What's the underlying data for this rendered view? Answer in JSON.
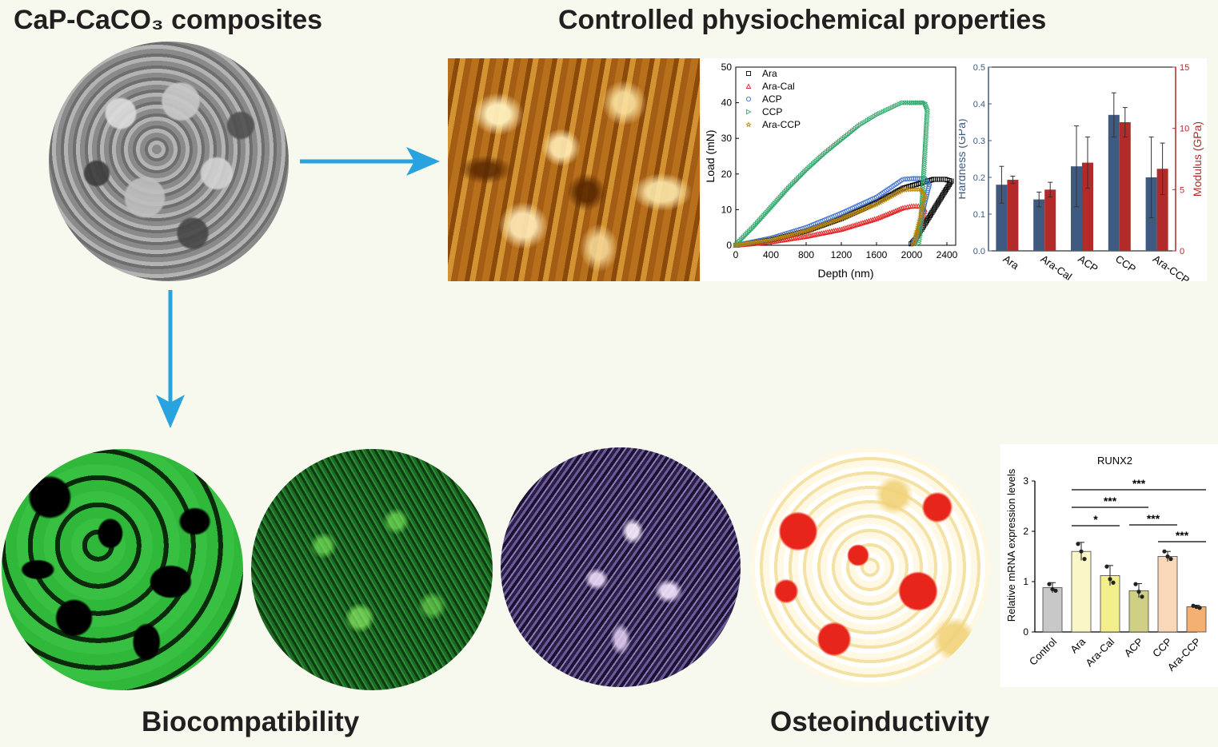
{
  "titles": {
    "composites": "CaP-CaCO₃ composites",
    "properties": "Controlled physiochemical properties",
    "biocompatibility": "Biocompatibility",
    "osteoinductivity": "Osteoinductivity"
  },
  "colors": {
    "background": "#f7f9ee",
    "arrow": "#29a3e0",
    "hardness": "#3e5a80",
    "modulus": "#b22a2a"
  },
  "chart_data": [
    {
      "type": "line",
      "xlabel": "Depth (nm)",
      "ylabel": "Load (mN)",
      "xlim": [
        0,
        2500
      ],
      "ylim": [
        0,
        50
      ],
      "xticks": [
        "0",
        "400",
        "800",
        "1200",
        "1600",
        "2000",
        "2400"
      ],
      "yticks": [
        "0",
        "10",
        "20",
        "30",
        "40",
        "50"
      ],
      "legend_position": "top-left",
      "series": [
        {
          "name": "Ara",
          "color": "#000000",
          "marker": "square",
          "x": [
            0,
            400,
            800,
            1200,
            1600,
            1900,
            2250,
            2380,
            2450,
            2300,
            2150,
            2050,
            1980
          ],
          "y": [
            0,
            1.5,
            4,
            7.5,
            12,
            16,
            18.5,
            18.5,
            18,
            12,
            6,
            2,
            0
          ]
        },
        {
          "name": "Ara-Cal",
          "color": "#e02020",
          "marker": "triangle",
          "x": [
            0,
            400,
            800,
            1200,
            1600,
            1900,
            2000,
            2100,
            2150,
            2100,
            2060,
            2030,
            2000
          ],
          "y": [
            0,
            1,
            2.5,
            4.5,
            7.5,
            10.5,
            11,
            11,
            10,
            6,
            3,
            1,
            0
          ]
        },
        {
          "name": "ACP",
          "color": "#3d6fd0",
          "marker": "circle",
          "x": [
            0,
            400,
            800,
            1200,
            1600,
            1900,
            2000,
            2150,
            2200,
            2130,
            2080,
            2040,
            2000
          ],
          "y": [
            0,
            2,
            5,
            9,
            13.5,
            18.5,
            18.7,
            18.7,
            17,
            10,
            5,
            1.5,
            0
          ]
        },
        {
          "name": "CCP",
          "color": "#2fa86a",
          "marker": "triangle-right",
          "x": [
            0,
            200,
            400,
            600,
            800,
            1000,
            1200,
            1400,
            1600,
            1900,
            2000,
            2150,
            2180,
            2150,
            2120,
            2100,
            2080
          ],
          "y": [
            0,
            5,
            10.5,
            16,
            21,
            25.5,
            29.5,
            33.5,
            36.5,
            40,
            40,
            40,
            38,
            25,
            12,
            4,
            0
          ]
        },
        {
          "name": "Ara-CCP",
          "color": "#b8860b",
          "marker": "star",
          "x": [
            0,
            400,
            800,
            1200,
            1600,
            1900,
            2000,
            2100,
            2150,
            2100,
            2060,
            2030,
            2000
          ],
          "y": [
            0,
            1.5,
            4,
            7.5,
            11.5,
            15.5,
            15.7,
            15.7,
            14,
            8,
            4,
            1,
            0
          ]
        }
      ]
    },
    {
      "type": "bar",
      "categories": [
        "Ara",
        "Ara-Cal",
        "ACP",
        "CCP",
        "Ara-CCP"
      ],
      "ylabel_left": "Hardness (GPa)",
      "ylabel_right": "Modulus (GPa)",
      "ylim_left": [
        0,
        0.5
      ],
      "ylim_right": [
        0,
        15
      ],
      "yticks_left": [
        "0.0",
        "0.1",
        "0.2",
        "0.3",
        "0.4",
        "0.5"
      ],
      "yticks_right": [
        "0",
        "5",
        "10",
        "15"
      ],
      "series": [
        {
          "name": "Hardness (GPa)",
          "axis": "left",
          "color": "#3e5a80",
          "values": [
            0.18,
            0.14,
            0.23,
            0.37,
            0.2
          ],
          "errors": [
            0.05,
            0.02,
            0.11,
            0.06,
            0.11
          ]
        },
        {
          "name": "Modulus (GPa)",
          "axis": "right",
          "color": "#b22a2a",
          "values": [
            5.8,
            5.0,
            7.2,
            10.5,
            6.7
          ],
          "errors": [
            0.3,
            0.6,
            2.1,
            1.2,
            2.1
          ]
        }
      ]
    },
    {
      "type": "bar",
      "title": "RUNX2",
      "ylabel": "Relative mRNA expression levels",
      "ylim": [
        0,
        3
      ],
      "yticks": [
        "0",
        "1",
        "2",
        "3"
      ],
      "categories": [
        "Control",
        "Ara",
        "Ara-Cal",
        "ACP",
        "CCP",
        "Ara-CCP"
      ],
      "values": [
        0.88,
        1.6,
        1.12,
        0.82,
        1.5,
        0.5
      ],
      "errors": [
        0.1,
        0.18,
        0.2,
        0.14,
        0.1,
        0.03
      ],
      "colors": [
        "#c8c8c8",
        "#fbf6c8",
        "#f3ef8c",
        "#d0d084",
        "#f8d8b8",
        "#f4b070"
      ],
      "points": [
        [
          0.95,
          0.85,
          0.82
        ],
        [
          1.75,
          1.6,
          1.45
        ],
        [
          1.3,
          1.05,
          0.98
        ],
        [
          0.95,
          0.8,
          0.7
        ],
        [
          1.6,
          1.5,
          1.45
        ],
        [
          0.52,
          0.5,
          0.48
        ]
      ],
      "significance": [
        {
          "from": 1,
          "to": 5,
          "label": "***"
        },
        {
          "from": 1,
          "to": 3,
          "label": "***"
        },
        {
          "from": 1,
          "to": 2,
          "label": "*"
        },
        {
          "from": 3,
          "to": 4,
          "label": "***"
        },
        {
          "from": 4,
          "to": 5,
          "label": "***"
        }
      ]
    }
  ]
}
